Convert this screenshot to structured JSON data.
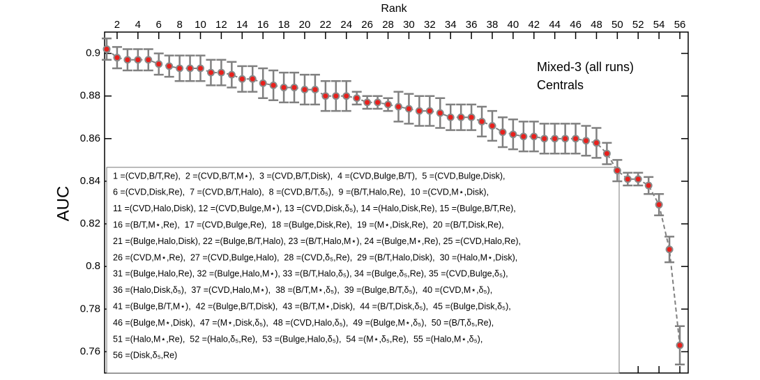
{
  "chart_data": {
    "type": "scatter",
    "x_label": "Rank",
    "y_label": "AUC",
    "annotations": [
      "Mixed-3 (all runs)",
      "Centrals"
    ],
    "x": [
      1,
      2,
      3,
      4,
      5,
      6,
      7,
      8,
      9,
      10,
      11,
      12,
      13,
      14,
      15,
      16,
      17,
      18,
      19,
      20,
      21,
      22,
      23,
      24,
      25,
      26,
      27,
      28,
      29,
      30,
      31,
      32,
      33,
      34,
      35,
      36,
      37,
      38,
      39,
      40,
      41,
      42,
      43,
      44,
      45,
      46,
      47,
      48,
      49,
      50,
      51,
      52,
      53,
      54,
      55,
      56
    ],
    "values": [
      0.902,
      0.898,
      0.897,
      0.897,
      0.897,
      0.895,
      0.894,
      0.893,
      0.893,
      0.893,
      0.891,
      0.891,
      0.89,
      0.888,
      0.888,
      0.886,
      0.885,
      0.884,
      0.884,
      0.883,
      0.883,
      0.88,
      0.88,
      0.88,
      0.879,
      0.877,
      0.877,
      0.876,
      0.875,
      0.874,
      0.873,
      0.873,
      0.872,
      0.87,
      0.87,
      0.87,
      0.868,
      0.866,
      0.863,
      0.862,
      0.861,
      0.861,
      0.86,
      0.86,
      0.86,
      0.86,
      0.859,
      0.858,
      0.853,
      0.845,
      0.841,
      0.841,
      0.838,
      0.829,
      0.808,
      0.763
    ],
    "errors": [
      0.005,
      0.005,
      0.005,
      0.005,
      0.005,
      0.005,
      0.005,
      0.006,
      0.006,
      0.006,
      0.006,
      0.006,
      0.006,
      0.006,
      0.006,
      0.007,
      0.007,
      0.007,
      0.007,
      0.007,
      0.007,
      0.007,
      0.007,
      0.007,
      0.003,
      0.003,
      0.003,
      0.003,
      0.007,
      0.007,
      0.007,
      0.007,
      0.007,
      0.006,
      0.006,
      0.006,
      0.007,
      0.007,
      0.007,
      0.007,
      0.007,
      0.007,
      0.007,
      0.007,
      0.007,
      0.007,
      0.007,
      0.007,
      0.005,
      0.005,
      0.003,
      0.003,
      0.004,
      0.005,
      0.006,
      0.009
    ],
    "color": "#e8201c",
    "edge_color": "#8a8a8a",
    "errorbar_color": "#808080",
    "line_style": "dashed",
    "xlim": [
      0.8,
      56.8
    ],
    "xticks": [
      2,
      4,
      6,
      8,
      10,
      12,
      14,
      16,
      18,
      20,
      22,
      24,
      26,
      28,
      30,
      32,
      34,
      36,
      38,
      40,
      42,
      44,
      46,
      48,
      50,
      52,
      54,
      56
    ],
    "ylim": [
      0.75,
      0.91
    ],
    "yticks": [
      0.76,
      0.78,
      0.8,
      0.82,
      0.84,
      0.86,
      0.88,
      0.9
    ],
    "legend_lines": [
      "1 =(CVD,B/T,Re),  2 =(CVD,B/T,M⋆),  3 =(CVD,B/T,Disk),  4 =(CVD,Bulge,B/T),  5 =(CVD,Bulge,Disk),",
      "6 =(CVD,Disk,Re),  7 =(CVD,B/T,Halo),  8 =(CVD,B/T,δ₅),  9 =(B/T,Halo,Re),  10 =(CVD,M⋆,Disk),",
      "11 =(CVD,Halo,Disk), 12 =(CVD,Bulge,M⋆), 13 =(CVD,Disk,δ₅), 14 =(Halo,Disk,Re), 15 =(Bulge,B/T,Re),",
      "16 =(B/T,M⋆,Re),  17 =(CVD,Bulge,Re),  18 =(Bulge,Disk,Re),  19 =(M⋆,Disk,Re),  20 =(B/T,Disk,Re),",
      "21 =(Bulge,Halo,Disk), 22 =(Bulge,B/T,Halo), 23 =(B/T,Halo,M⋆), 24 =(Bulge,M⋆,Re), 25 =(CVD,Halo,Re),",
      "26 =(CVD,M⋆,Re),  27 =(CVD,Bulge,Halo),  28 =(CVD,δ₅,Re),  29 =(B/T,Halo,Disk),  30 =(Halo,M⋆,Disk),",
      "31 =(Bulge,Halo,Re), 32 =(Bulge,Halo,M⋆), 33 =(B/T,Halo,δ₅), 34 =(Bulge,δ₅,Re), 35 =(CVD,Bulge,δ₅),",
      "36 =(Halo,Disk,δ₅),  37 =(CVD,Halo,M⋆),  38 =(B/T,M⋆,δ₅),  39 =(Bulge,B/T,δ₅),  40 =(CVD,M⋆,δ₅),",
      "41 =(Bulge,B/T,M⋆),  42 =(Bulge,B/T,Disk),  43 =(B/T,M⋆,Disk),  44 =(B/T,Disk,δ₅),  45 =(Bulge,Disk,δ₅),",
      "46 =(Bulge,M⋆,Disk),  47 =(M⋆,Disk,δ₅),  48 =(CVD,Halo,δ₅),  49 =(Bulge,M⋆,δ₅),  50 =(B/T,δ₅,Re),",
      "51 =(Halo,M⋆,Re),  52 =(Halo,δ₅,Re),  53 =(Bulge,Halo,δ₅),  54 =(M⋆,δ₅,Re),  55 =(Halo,M⋆,δ₅),",
      "56 =(Disk,δ₅,Re)"
    ]
  }
}
